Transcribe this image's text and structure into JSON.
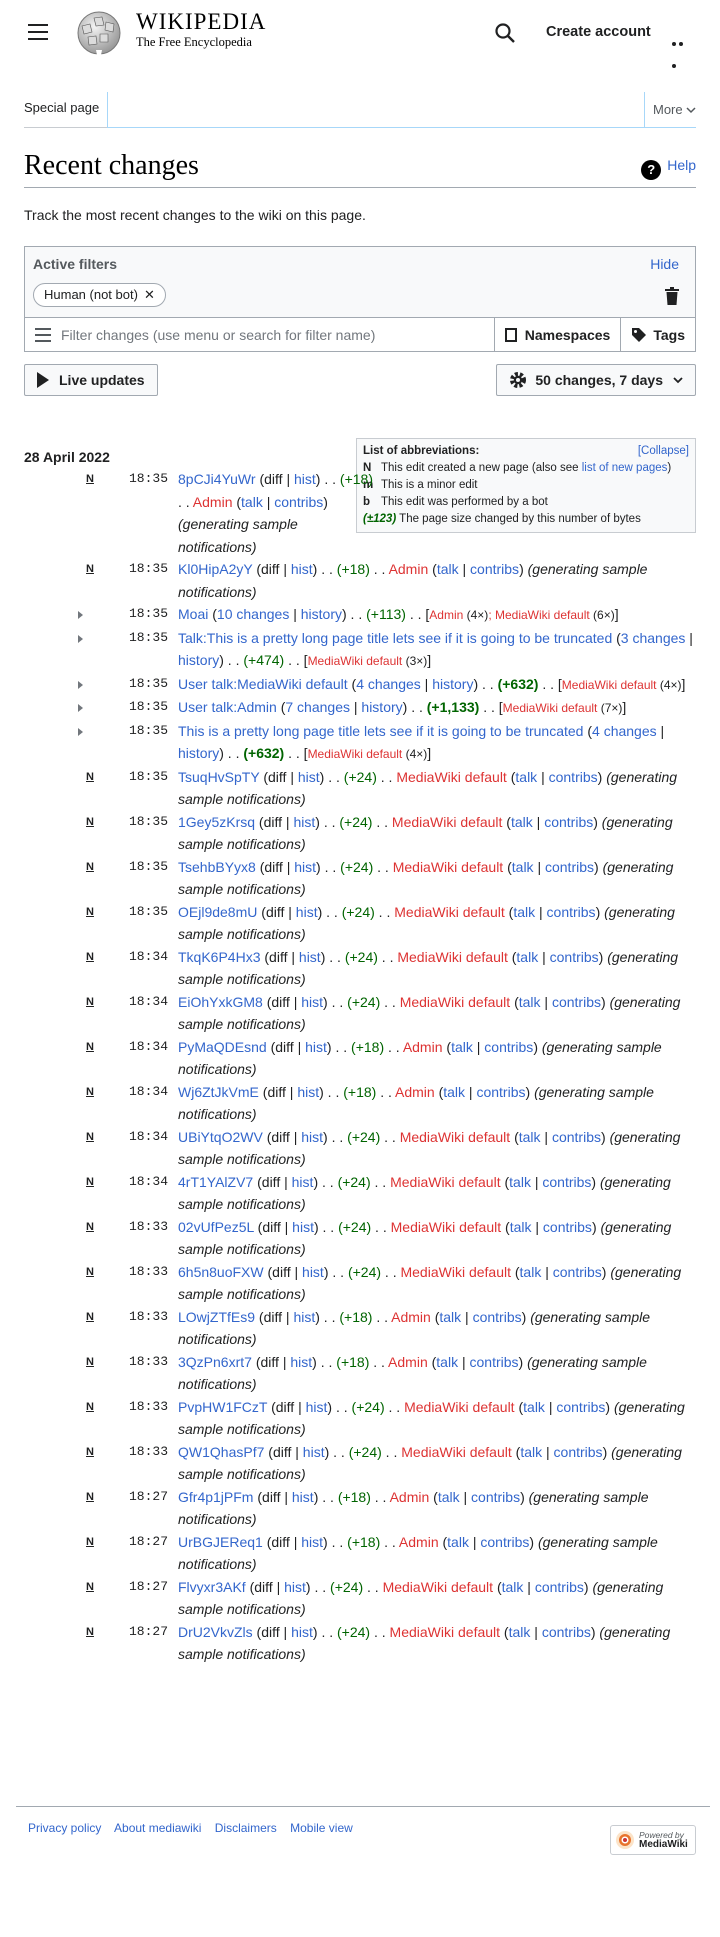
{
  "header": {
    "wordmark": "Wikipedia",
    "tagline": "The Free Encyclopedia",
    "create_account": "Create account"
  },
  "tabs": {
    "special": "Special page",
    "more": "More"
  },
  "page": {
    "title": "Recent changes",
    "help": "Help",
    "intro": "Track the most recent changes to the wiki on this page."
  },
  "filters": {
    "active_label": "Active filters",
    "hide": "Hide",
    "chip": "Human (not bot)",
    "placeholder": "Filter changes (use menu or search for filter name)",
    "namespaces": "Namespaces",
    "tags": "Tags"
  },
  "controls": {
    "live_updates": "Live updates",
    "changes": "50 changes, 7 days"
  },
  "legend": {
    "title": "List of abbreviations:",
    "collapse": "Collapse",
    "n_text": "This edit created a new page (also see ",
    "n_link": "list of new pages",
    "m_text": "This is a minor edit",
    "b_text": "This edit was performed by a bot",
    "size_key": "(±123)",
    "size_text": "The page size changed by this number of bytes"
  },
  "date": "28 April 2022",
  "rows": [
    {
      "t": "18:35",
      "title": "8pCJi4YuWr",
      "d": "(+18)",
      "user": "Admin"
    },
    {
      "t": "18:35",
      "title": "Kl0HipA2yY",
      "d": "(+18)",
      "user": "Admin"
    },
    {
      "t": "18:35",
      "title": "Moai",
      "changes": "10 changes",
      "d": "(+113)",
      "users": "Admin (4×); MediaWiki default (6×)"
    },
    {
      "t": "18:35",
      "title": "Talk:This is a pretty long page title lets see if it is going to be truncated",
      "changes": "3 changes",
      "d": "(+474)",
      "users": "MediaWiki default (3×)"
    },
    {
      "t": "18:35",
      "title": "User talk:MediaWiki default",
      "changes": "4 changes",
      "d": "(+632)",
      "users": "MediaWiki default (4×)"
    },
    {
      "t": "18:35",
      "title": "User talk:Admin",
      "changes": "7 changes",
      "d": "(+1,133)",
      "users": "MediaWiki default (7×)"
    },
    {
      "t": "18:35",
      "title": "This is a pretty long page title lets see if it is going to be truncated",
      "changes": "4 changes",
      "d": "(+632)",
      "users": "MediaWiki default (4×)"
    },
    {
      "t": "18:35",
      "title": "TsuqHvSpTY",
      "d": "(+24)",
      "user": "MediaWiki default"
    },
    {
      "t": "18:35",
      "title": "1Gey5zKrsq",
      "d": "(+24)",
      "user": "MediaWiki default"
    },
    {
      "t": "18:35",
      "title": "TsehbBYyx8",
      "d": "(+24)",
      "user": "MediaWiki default"
    },
    {
      "t": "18:35",
      "title": "OEjl9de8mU",
      "d": "(+24)",
      "user": "MediaWiki default"
    },
    {
      "t": "18:34",
      "title": "TkqK6P4Hx3",
      "d": "(+24)",
      "user": "MediaWiki default"
    },
    {
      "t": "18:34",
      "title": "EiOhYxkGM8",
      "d": "(+24)",
      "user": "MediaWiki default"
    },
    {
      "t": "18:34",
      "title": "PyMaQDEsnd",
      "d": "(+18)",
      "user": "Admin"
    },
    {
      "t": "18:34",
      "title": "Wj6ZtJkVmE",
      "d": "(+18)",
      "user": "Admin"
    },
    {
      "t": "18:34",
      "title": "UBiYtqO2WV",
      "d": "(+24)",
      "user": "MediaWiki default"
    },
    {
      "t": "18:34",
      "title": "4rT1YAlZV7",
      "d": "(+24)",
      "user": "MediaWiki default"
    },
    {
      "t": "18:33",
      "title": "02vUfPez5L",
      "d": "(+24)",
      "user": "MediaWiki default"
    },
    {
      "t": "18:33",
      "title": "6h5n8uoFXW",
      "d": "(+24)",
      "user": "MediaWiki default"
    },
    {
      "t": "18:33",
      "title": "LOwjZTfEs9",
      "d": "(+18)",
      "user": "Admin"
    },
    {
      "t": "18:33",
      "title": "3QzPn6xrt7",
      "d": "(+18)",
      "user": "Admin"
    },
    {
      "t": "18:33",
      "title": "PvpHW1FCzT",
      "d": "(+24)",
      "user": "MediaWiki default"
    },
    {
      "t": "18:33",
      "title": "QW1QhasPf7",
      "d": "(+24)",
      "user": "MediaWiki default"
    },
    {
      "t": "18:27",
      "title": "Gfr4p1jPFm",
      "d": "(+18)",
      "user": "Admin"
    },
    {
      "t": "18:27",
      "title": "UrBGJEReq1",
      "d": "(+18)",
      "user": "Admin"
    },
    {
      "t": "18:27",
      "title": "Flvyxr3AKf",
      "d": "(+24)",
      "user": "MediaWiki default"
    },
    {
      "t": "18:27",
      "title": "DrU2VkvZls",
      "d": "(+24)",
      "user": "MediaWiki default"
    }
  ],
  "labels": {
    "n": "N",
    "m": "m",
    "b": "b",
    "diff": "diff",
    "hist": "hist",
    "history": "history",
    "talk": "talk",
    "contribs": "contribs",
    "note": "(generating sample notifications)"
  },
  "footer": {
    "privacy": "Privacy policy",
    "about": "About mediawiki",
    "disclaimers": "Disclaimers",
    "mobile": "Mobile view",
    "powered_1": "Powered by",
    "powered_2": "MediaWiki"
  }
}
